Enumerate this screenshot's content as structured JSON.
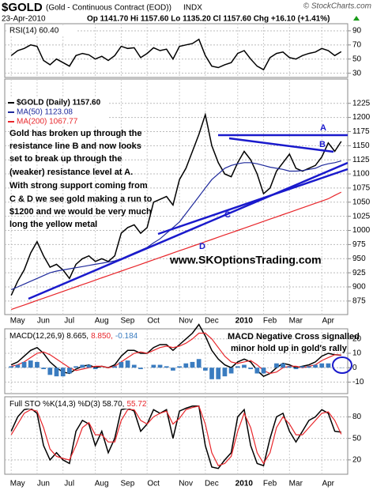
{
  "header": {
    "symbol": "$GOLD",
    "name": "(Gold - Continuous Contract (EOD))",
    "exchange": "INDX",
    "source": "© StockCharts.com",
    "date": "23-Apr-2010",
    "quote": "Op 1141.70 Hi 1157.60 Lo 1135.20 Cl 1157.60 Chg +16.10 (+1.41%)"
  },
  "chart_data": [
    {
      "type": "line",
      "title": "RSI(14) 60.40",
      "xlim": [
        -1,
        52
      ],
      "ylim": [
        24,
        100
      ],
      "yticks": [
        30,
        50,
        70,
        90
      ],
      "grid": true,
      "series": [
        {
          "name": "RSI",
          "color": "#000000",
          "values": [
            55,
            62,
            65,
            70,
            68,
            48,
            42,
            50,
            45,
            40,
            55,
            58,
            56,
            50,
            54,
            48,
            55,
            68,
            65,
            66,
            52,
            58,
            66,
            62,
            64,
            50,
            68,
            70,
            72,
            78,
            55,
            40,
            38,
            42,
            45,
            58,
            62,
            50,
            40,
            35,
            52,
            58,
            60,
            52,
            50,
            55,
            58,
            60,
            65,
            62,
            55,
            60.4
          ]
        }
      ]
    },
    {
      "type": "line",
      "xlim": [
        -1,
        52
      ],
      "ylim": [
        851,
        1268
      ],
      "yticks": [
        875,
        900,
        925,
        950,
        975,
        1000,
        1025,
        1050,
        1075,
        1100,
        1125,
        1150,
        1175,
        1200,
        1225
      ],
      "grid": true,
      "xticks": [
        {
          "value": 0,
          "label": "May"
        },
        {
          "value": 4,
          "label": "Jun"
        },
        {
          "value": 8,
          "label": "Jul"
        },
        {
          "value": 13,
          "label": "Aug"
        },
        {
          "value": 17,
          "label": "Sep"
        },
        {
          "value": 21,
          "label": "Oct"
        },
        {
          "value": 26,
          "label": "Nov"
        },
        {
          "value": 30,
          "label": "Dec"
        },
        {
          "value": 35,
          "label": "2010"
        },
        {
          "value": 39,
          "label": "Feb"
        },
        {
          "value": 43,
          "label": "Mar"
        },
        {
          "value": 48,
          "label": "Apr"
        }
      ],
      "series": [
        {
          "name": "$GOLD (Daily) 1157.60",
          "color": "#000000",
          "values": [
            885,
            910,
            930,
            960,
            980,
            955,
            935,
            940,
            930,
            915,
            940,
            950,
            955,
            945,
            950,
            945,
            955,
            995,
            1005,
            1010,
            995,
            1005,
            1050,
            1055,
            1060,
            1045,
            1090,
            1110,
            1140,
            1170,
            1205,
            1150,
            1120,
            1100,
            1095,
            1120,
            1140,
            1125,
            1100,
            1065,
            1075,
            1105,
            1120,
            1135,
            1110,
            1105,
            1110,
            1115,
            1130,
            1155,
            1140,
            1157.6
          ]
        },
        {
          "name": "MA(50) 1123.08",
          "color": "#1f2a9c",
          "values": [
            895,
            900,
            905,
            910,
            915,
            920,
            925,
            928,
            930,
            932,
            934,
            936,
            938,
            940,
            942,
            944,
            946,
            950,
            955,
            960,
            965,
            970,
            978,
            985,
            995,
            1005,
            1015,
            1030,
            1045,
            1060,
            1075,
            1090,
            1100,
            1110,
            1115,
            1118,
            1120,
            1120,
            1118,
            1115,
            1112,
            1110,
            1108,
            1105,
            1105,
            1106,
            1108,
            1110,
            1115,
            1118,
            1120,
            1123.08
          ]
        },
        {
          "name": "MA(200) 1067.77",
          "color": "#e8262b",
          "values": [
            860,
            864,
            868,
            872,
            876,
            880,
            884,
            888,
            892,
            896,
            900,
            904,
            908,
            912,
            916,
            920,
            924,
            928,
            932,
            936,
            940,
            944,
            948,
            952,
            956,
            960,
            964,
            968,
            972,
            976,
            980,
            984,
            988,
            992,
            996,
            1000,
            1004,
            1008,
            1012,
            1016,
            1020,
            1024,
            1028,
            1032,
            1036,
            1040,
            1044,
            1048,
            1052,
            1056,
            1062,
            1067.77
          ]
        }
      ],
      "notes": [
        "Gold has broken up through the",
        "resistance line B and now looks",
        "set to break up through the",
        "(weaker) resistance level at A.",
        "With strong support coming from",
        "C & D we see gold making a run to",
        "$1200 and we would be very much",
        "long the yellow metal"
      ],
      "line_labels": [
        "A",
        "B",
        "C",
        "D"
      ],
      "website": "www.SKOptionsTrading.com"
    },
    {
      "type": "line",
      "xlim": [
        -1,
        52
      ],
      "ylim": [
        -18,
        27
      ],
      "yticks": [
        -10,
        0,
        10,
        20
      ],
      "grid": true,
      "series": [
        {
          "name": "MACD(12,26,9) 8.665,",
          "color": "#000000",
          "values": [
            2,
            4,
            8,
            12,
            14,
            10,
            4,
            0,
            -3,
            -4,
            -1,
            1,
            2,
            0,
            1,
            0,
            2,
            8,
            12,
            12,
            10,
            10,
            14,
            16,
            16,
            12,
            16,
            20,
            24,
            30,
            22,
            12,
            6,
            2,
            0,
            4,
            6,
            4,
            -2,
            -6,
            -4,
            0,
            3,
            2,
            0,
            1,
            2,
            4,
            8,
            10,
            9,
            8.665
          ]
        },
        {
          "name": "8.850,",
          "color": "#e8262b",
          "values": [
            1,
            2,
            4,
            7,
            10,
            11,
            9,
            6,
            3,
            0,
            -2,
            -1,
            0,
            1,
            1,
            0,
            1,
            4,
            7,
            10,
            11,
            10,
            12,
            14,
            15,
            14,
            15,
            17,
            20,
            24,
            24,
            20,
            14,
            8,
            4,
            3,
            4,
            5,
            2,
            -2,
            -4,
            -3,
            0,
            1,
            1,
            0,
            1,
            2,
            5,
            7,
            9,
            8.85
          ]
        },
        {
          "name": "-0.184",
          "color": "#3a7cc0",
          "style": "histogram",
          "values": [
            1,
            2,
            4,
            5,
            4,
            -1,
            -5,
            -6,
            -6,
            -4,
            1,
            2,
            2,
            -1,
            0,
            0,
            1,
            4,
            5,
            2,
            -1,
            0,
            2,
            2,
            1,
            -2,
            1,
            3,
            4,
            6,
            -2,
            -8,
            -8,
            -6,
            -4,
            1,
            2,
            -1,
            -4,
            -4,
            0,
            3,
            3,
            1,
            -1,
            1,
            1,
            2,
            3,
            3,
            0,
            -0.184
          ]
        }
      ],
      "notes": [
        "MACD Negative Cross signalled",
        "minor hold up in gold's rally"
      ]
    },
    {
      "type": "line",
      "xlim": [
        -1,
        52
      ],
      "ylim": [
        0,
        108
      ],
      "yticks": [
        20,
        50,
        80
      ],
      "grid": true,
      "xticks": [
        {
          "value": 0,
          "label": "May"
        },
        {
          "value": 4,
          "label": "Jun"
        },
        {
          "value": 8,
          "label": "Jul"
        },
        {
          "value": 13,
          "label": "Aug"
        },
        {
          "value": 17,
          "label": "Sep"
        },
        {
          "value": 21,
          "label": "Oct"
        },
        {
          "value": 26,
          "label": "Nov"
        },
        {
          "value": 30,
          "label": "Dec"
        },
        {
          "value": 35,
          "label": "2010"
        },
        {
          "value": 39,
          "label": "Feb"
        },
        {
          "value": 43,
          "label": "Mar"
        },
        {
          "value": 48,
          "label": "Apr"
        }
      ],
      "series": [
        {
          "name": "Full STO %K(14,3) %D(3) 58.70,",
          "color": "#000000",
          "values": [
            60,
            80,
            90,
            92,
            85,
            40,
            20,
            30,
            20,
            15,
            60,
            75,
            70,
            40,
            60,
            30,
            50,
            90,
            92,
            88,
            60,
            70,
            90,
            85,
            90,
            50,
            88,
            92,
            95,
            95,
            40,
            10,
            8,
            20,
            30,
            80,
            90,
            40,
            15,
            12,
            50,
            80,
            85,
            60,
            45,
            60,
            75,
            80,
            90,
            85,
            60,
            58.7
          ]
        },
        {
          "name": "55.72",
          "color": "#e8262b",
          "values": [
            55,
            70,
            85,
            90,
            88,
            65,
            35,
            25,
            22,
            20,
            40,
            65,
            72,
            55,
            55,
            45,
            45,
            75,
            90,
            90,
            75,
            70,
            80,
            85,
            88,
            70,
            78,
            90,
            93,
            95,
            70,
            30,
            12,
            15,
            25,
            60,
            85,
            65,
            30,
            15,
            30,
            65,
            80,
            70,
            55,
            55,
            65,
            75,
            85,
            87,
            75,
            55.72
          ]
        }
      ]
    }
  ]
}
